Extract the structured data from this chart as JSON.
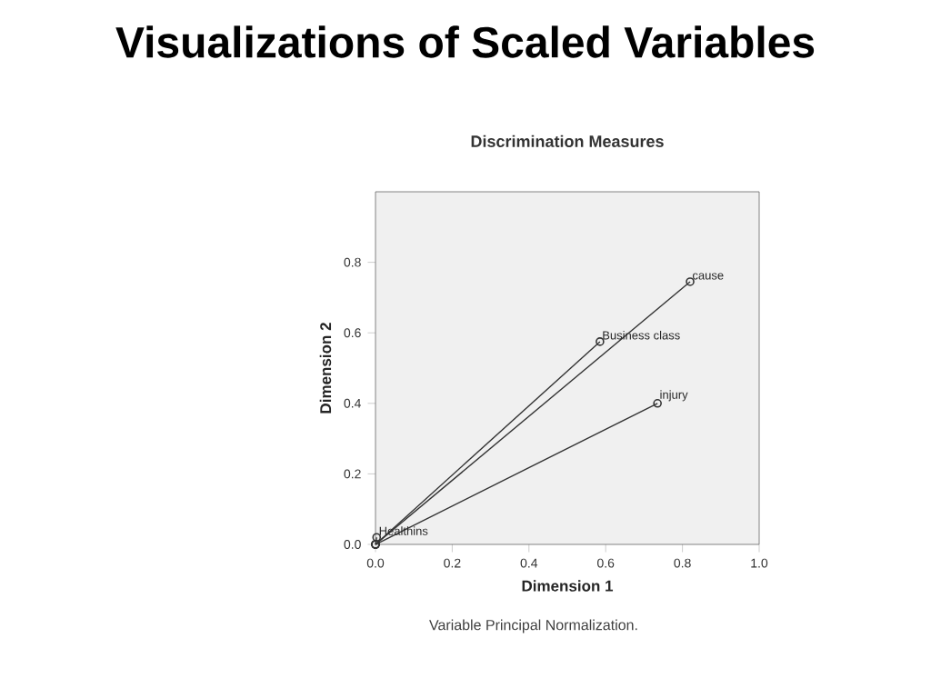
{
  "chart_data": {
    "type": "line",
    "title": "Visualizations of Scaled Variables",
    "subtitle": "Discrimination Measures",
    "xlabel": "Dimension 1",
    "ylabel": "Dimension 2",
    "annotations": [
      "Variable Principal Normalization."
    ],
    "marker": "circle",
    "xlim": [
      0,
      1.0
    ],
    "ylim": [
      0,
      1.0
    ],
    "xticks": [
      {
        "value": 0,
        "label": "0.0"
      },
      {
        "value": 0.2,
        "label": "0.2"
      },
      {
        "value": 0.4,
        "label": "0.4"
      },
      {
        "value": 0.6,
        "label": "0.6"
      },
      {
        "value": 0.8,
        "label": "0.8"
      },
      {
        "value": 1.0,
        "label": "1.0"
      }
    ],
    "yticks": [
      {
        "value": 0,
        "label": "0.0"
      },
      {
        "value": 0.2,
        "label": "0.2"
      },
      {
        "value": 0.4,
        "label": "0.4"
      },
      {
        "value": 0.6,
        "label": "0.6"
      },
      {
        "value": 0.8,
        "label": "0.8"
      }
    ],
    "series": [
      {
        "name": "cause",
        "color": "#333333",
        "x": [
          0,
          0.82
        ],
        "values": [
          0,
          0.745
        ]
      },
      {
        "name": "Business class",
        "color": "#333333",
        "x": [
          0,
          0.585
        ],
        "values": [
          0,
          0.575
        ]
      },
      {
        "name": "injury",
        "color": "#333333",
        "x": [
          0,
          0.735
        ],
        "values": [
          0,
          0.4
        ]
      },
      {
        "name": "Healthins",
        "color": "#333333",
        "x": [
          0,
          0.003
        ],
        "values": [
          0,
          0.02
        ]
      }
    ]
  }
}
